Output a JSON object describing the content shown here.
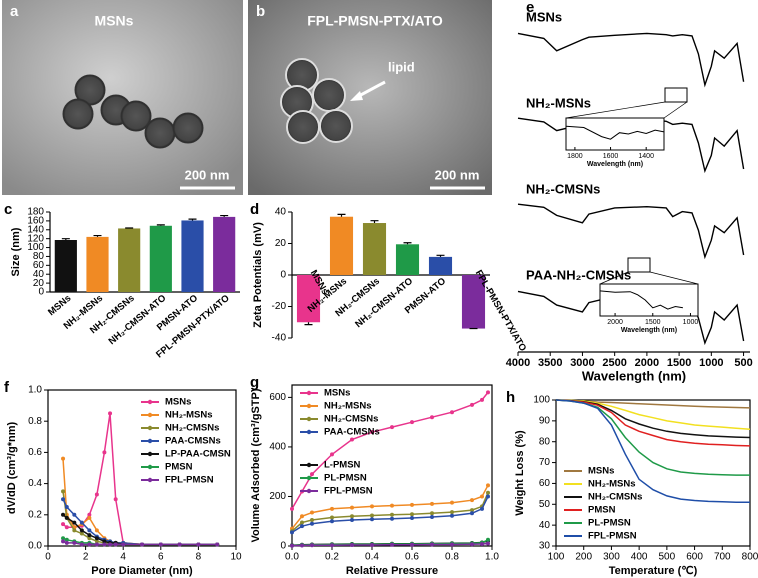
{
  "panels": {
    "a": {
      "label": "a",
      "title": "MSNs",
      "scale": "200 nm"
    },
    "b": {
      "label": "b",
      "title": "FPL-PMSN-PTX/ATO",
      "arrow": "lipid",
      "scale": "200 nm"
    }
  },
  "chart_data": [
    {
      "type": "bar",
      "label": "c",
      "ylabel": "Size (nm)",
      "categories": [
        "MSNs",
        "NH₂-MSNs",
        "NH₂-CMSNs",
        "NH₂-CMSN-ATO",
        "PMSN-ATO",
        "FPL-PMSN-PTX/ATO"
      ],
      "values": [
        117,
        124,
        143,
        149,
        161,
        169
      ],
      "errors": [
        3,
        3,
        1,
        2,
        3,
        3
      ],
      "colors": [
        "#111111",
        "#f08a24",
        "#8a8a2e",
        "#1f9a48",
        "#2a4ea8",
        "#7b2c9c"
      ],
      "ylim": [
        0,
        180
      ],
      "yticks": [
        0,
        20,
        40,
        60,
        80,
        100,
        120,
        140,
        160,
        180
      ]
    },
    {
      "type": "bar",
      "label": "d",
      "ylabel": "Zeta Potentials (mV)",
      "categories": [
        "MSNs",
        "NH₂-MSNs",
        "NH₂-CMSNs",
        "NH₂-CMSN-ATO",
        "PMSN-ATO",
        "FPL-PMSN-PTX/ATO"
      ],
      "values": [
        -30,
        37,
        33,
        19.5,
        11.5,
        -34
      ],
      "errors": [
        1.5,
        1.5,
        1.5,
        1,
        1,
        0
      ],
      "colors": [
        "#e8348c",
        "#f08a24",
        "#8a8a2e",
        "#1f9a48",
        "#2a4ea8",
        "#7b2c9c"
      ],
      "ylim": [
        -40,
        40
      ],
      "yticks": [
        -40,
        -20,
        0,
        20,
        40
      ]
    },
    {
      "type": "spectra",
      "label": "e",
      "xlabel": "Wavelength (nm)",
      "xlim": [
        4000,
        400
      ],
      "xticks": [
        4000,
        3500,
        3000,
        2500,
        2000,
        1500,
        1000,
        500
      ],
      "x": [
        4000,
        3600,
        3400,
        3000,
        2900,
        2500,
        2000,
        1700,
        1600,
        1450,
        1300,
        1200,
        1100,
        1000,
        950,
        800,
        600,
        500
      ],
      "series": [
        {
          "name": "MSNs",
          "values": [
            88,
            80,
            60,
            78,
            82,
            85,
            88,
            86,
            84,
            86,
            84,
            55,
            5,
            35,
            60,
            48,
            72,
            10
          ]
        },
        {
          "name": "NH₂-MSNs",
          "values": [
            90,
            84,
            70,
            80,
            82,
            86,
            88,
            85,
            80,
            82,
            80,
            50,
            5,
            30,
            58,
            45,
            70,
            8
          ]
        },
        {
          "name": "NH₂-CMSNs",
          "values": [
            90,
            85,
            72,
            60,
            74,
            84,
            86,
            84,
            70,
            78,
            76,
            48,
            5,
            32,
            55,
            44,
            68,
            8
          ]
        },
        {
          "name": "PAA-NH₂-CMSNs",
          "values": [
            88,
            80,
            66,
            55,
            70,
            80,
            84,
            80,
            66,
            74,
            72,
            45,
            5,
            30,
            55,
            42,
            66,
            8
          ]
        }
      ],
      "insets": [
        {
          "xlabel": "Wavelength (nm)",
          "xlim": [
            1850,
            1300
          ],
          "xticks": [
            1800,
            1600,
            1400
          ],
          "x": [
            1850,
            1750,
            1650,
            1600,
            1550,
            1500,
            1450,
            1400,
            1350,
            1300
          ],
          "values": [
            80,
            75,
            40,
            30,
            55,
            50,
            60,
            52,
            65,
            58
          ]
        },
        {
          "xlabel": "Wavelength (nm)",
          "xlim": [
            2200,
            900
          ],
          "xticks": [
            2000,
            1500,
            1000
          ],
          "x": [
            2200,
            2000,
            1800,
            1700,
            1600,
            1500,
            1400,
            1300,
            1200,
            1100
          ],
          "values": [
            85,
            80,
            82,
            70,
            50,
            20,
            30,
            15,
            25,
            20
          ]
        }
      ]
    },
    {
      "type": "line",
      "label": "f",
      "markers": true,
      "legend": "upper right",
      "xlabel": "Pore Diameter (nm)",
      "ylabel": "dV/dD (cm³/g*nm)",
      "xlim": [
        0,
        10
      ],
      "xticks": [
        0,
        2,
        4,
        6,
        8,
        10
      ],
      "ylim": [
        0,
        1
      ],
      "yticks": [
        {
          "value": 0,
          "label": "0.0"
        },
        {
          "value": 0.2,
          "label": "0.2"
        },
        {
          "value": 0.4,
          "label": "0.4"
        },
        {
          "value": 0.6,
          "label": "0.6"
        },
        {
          "value": 0.8,
          "label": "0.8"
        },
        {
          "value": 1,
          "label": "1.0"
        }
      ],
      "x": [
        0.8,
        1.0,
        1.4,
        1.8,
        2.2,
        2.6,
        3.0,
        3.3,
        3.6,
        4.0,
        5,
        6,
        7,
        8,
        9
      ],
      "series": [
        {
          "name": "MSNs",
          "color": "#e8348c",
          "values": [
            0.14,
            0.12,
            0.12,
            0.13,
            0.2,
            0.33,
            0.6,
            0.85,
            0.3,
            0.02,
            0.01,
            0.01,
            0.01,
            0.01,
            0.01
          ]
        },
        {
          "name": "NH₂-MSNs",
          "color": "#f08a24",
          "values": [
            0.56,
            0.2,
            0.12,
            0.14,
            0.18,
            0.1,
            0.05,
            0.03,
            0.02,
            0.02,
            0.01,
            0.01,
            0.01,
            0.01,
            0.01
          ]
        },
        {
          "name": "NH₂-CMSNs",
          "color": "#8a8a2e",
          "values": [
            0.35,
            0.18,
            0.1,
            0.08,
            0.05,
            0.03,
            0.02,
            0.02,
            0.01,
            0.01,
            0.01,
            0.01,
            0.01,
            0.01,
            0.01
          ]
        },
        {
          "name": "PAA-CMSNs",
          "color": "#2a4ea8",
          "values": [
            0.3,
            0.25,
            0.2,
            0.15,
            0.1,
            0.06,
            0.04,
            0.03,
            0.02,
            0.02,
            0.01,
            0.01,
            0.01,
            0.01,
            0.01
          ]
        },
        {
          "name": "LP-PAA-CMSN",
          "color": "#111111",
          "values": [
            0.2,
            0.18,
            0.15,
            0.1,
            0.07,
            0.05,
            0.03,
            0.02,
            0.02,
            0.01,
            0.01,
            0.01,
            0.01,
            0.01,
            0.01
          ]
        },
        {
          "name": "PMSN",
          "color": "#1f9a48",
          "values": [
            0.05,
            0.04,
            0.03,
            0.02,
            0.02,
            0.01,
            0.01,
            0.01,
            0.01,
            0.01,
            0.01,
            0.01,
            0.01,
            0.01,
            0.01
          ]
        },
        {
          "name": "FPL-PMSN",
          "color": "#7b2c9c",
          "values": [
            0.03,
            0.02,
            0.02,
            0.01,
            0.01,
            0.01,
            0.01,
            0.01,
            0.01,
            0.01,
            0.01,
            0.01,
            0.01,
            0.01,
            0.01
          ]
        }
      ]
    },
    {
      "type": "line",
      "label": "g",
      "markers": true,
      "legend": "upper left",
      "xlabel": "Relative Pressure",
      "ylabel": "Volume Adsorbed (cm³/gSTP)",
      "xlim": [
        0,
        1
      ],
      "xticks": [
        {
          "value": 0,
          "label": "0.0"
        },
        {
          "value": 0.2,
          "label": "0.2"
        },
        {
          "value": 0.4,
          "label": "0.4"
        },
        {
          "value": 0.6,
          "label": "0.6"
        },
        {
          "value": 0.8,
          "label": "0.8"
        },
        {
          "value": 1,
          "label": "1.0"
        }
      ],
      "ylim": [
        0,
        650
      ],
      "yticks": [
        0,
        200,
        400,
        600
      ],
      "x": [
        0.0,
        0.05,
        0.1,
        0.2,
        0.3,
        0.4,
        0.5,
        0.6,
        0.7,
        0.8,
        0.9,
        0.95,
        0.98
      ],
      "series": [
        {
          "name": "MSNs",
          "color": "#e8348c",
          "values": [
            150,
            220,
            290,
            370,
            430,
            460,
            480,
            500,
            520,
            540,
            570,
            590,
            620
          ]
        },
        {
          "name": "NH₂-MSNs",
          "color": "#f08a24",
          "values": [
            70,
            120,
            135,
            150,
            155,
            160,
            163,
            166,
            170,
            175,
            185,
            200,
            245
          ]
        },
        {
          "name": "NH₂-CMSNs",
          "color": "#8a8a2e",
          "values": [
            60,
            95,
            105,
            115,
            120,
            123,
            126,
            128,
            132,
            137,
            145,
            160,
            215
          ]
        },
        {
          "name": "PAA-CMSNs",
          "color": "#2a4ea8",
          "values": [
            55,
            80,
            90,
            100,
            105,
            108,
            110,
            113,
            117,
            122,
            132,
            150,
            200
          ]
        },
        {
          "name": "L-PMSN",
          "color": "#111111",
          "values": [
            3,
            5,
            6,
            7,
            8,
            8,
            9,
            9,
            10,
            11,
            12,
            14,
            20
          ]
        },
        {
          "name": "PL-PMSN",
          "color": "#1f9a48",
          "values": [
            2,
            4,
            5,
            6,
            7,
            7,
            8,
            8,
            9,
            10,
            11,
            13,
            25
          ]
        },
        {
          "name": "FPL-PMSN",
          "color": "#7b2c9c",
          "values": [
            1,
            2,
            3,
            3,
            4,
            4,
            5,
            5,
            6,
            6,
            7,
            8,
            10
          ]
        }
      ]
    },
    {
      "type": "line",
      "label": "h",
      "markers": false,
      "legend": "lower left",
      "xlabel": "Temperature (℃)",
      "ylabel": "Weight Loss (%)",
      "xlim": [
        100,
        800
      ],
      "xticks": [
        100,
        200,
        300,
        400,
        500,
        600,
        700,
        800
      ],
      "ylim": [
        30,
        100
      ],
      "yticks": [
        30,
        40,
        50,
        60,
        70,
        80,
        90,
        100
      ],
      "x": [
        100,
        150,
        200,
        250,
        300,
        350,
        400,
        450,
        500,
        550,
        600,
        650,
        700,
        750,
        800
      ],
      "series": [
        {
          "name": "MSNs",
          "color": "#a07840",
          "values": [
            100,
            99.8,
            99.5,
            99,
            98.8,
            98.5,
            98.2,
            97.9,
            97.6,
            97.3,
            97,
            96.8,
            96.6,
            96.4,
            96.2
          ]
        },
        {
          "name": "NH₂-MSNs",
          "color": "#f2e020",
          "values": [
            100,
            99.8,
            99.5,
            98.5,
            97,
            95,
            93,
            91.5,
            90,
            89,
            88,
            87.5,
            87,
            86.5,
            86
          ]
        },
        {
          "name": "NH₂-CMSNs",
          "color": "#111111",
          "values": [
            100,
            99.7,
            99.2,
            98,
            95,
            91,
            88.5,
            86.5,
            85,
            84,
            83.3,
            82.8,
            82.5,
            82.2,
            82
          ]
        },
        {
          "name": "PMSN",
          "color": "#e02020",
          "values": [
            100,
            99.6,
            99,
            97.5,
            94,
            88,
            85,
            83,
            81,
            80,
            79.3,
            78.8,
            78.5,
            78.2,
            78
          ]
        },
        {
          "name": "PL-PMSN",
          "color": "#1f9a48",
          "values": [
            100,
            99.5,
            98.5,
            96.5,
            91,
            82,
            75,
            70,
            67,
            65.5,
            64.8,
            64.4,
            64.2,
            64,
            64
          ]
        },
        {
          "name": "FPL-PMSN",
          "color": "#1f4ea8",
          "values": [
            100,
            99.5,
            98.5,
            96,
            88,
            74,
            62,
            57,
            54,
            52.5,
            51.8,
            51.4,
            51.2,
            51,
            51
          ]
        }
      ]
    }
  ]
}
